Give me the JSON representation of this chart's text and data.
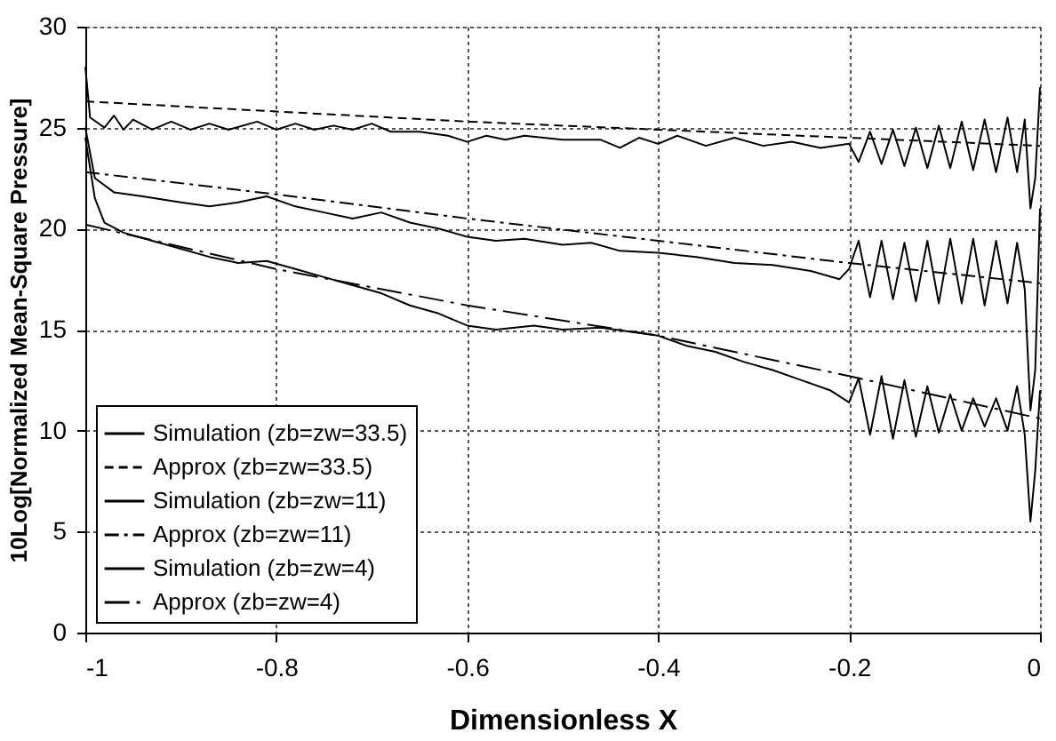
{
  "chart_data": {
    "type": "line",
    "xlabel": "Dimensionless X",
    "ylabel": "10Log[Normalized  Mean-Square  Pressure]",
    "xlim": [
      -1,
      0
    ],
    "ylim": [
      0,
      30
    ],
    "xticks": [
      -1,
      -0.8,
      -0.6,
      -0.4,
      -0.2,
      0
    ],
    "yticks": [
      0,
      5,
      10,
      15,
      20,
      25,
      30
    ],
    "grid": true,
    "legend": "bottom left",
    "marker": "none",
    "series": [
      {
        "name": "Simulation (zb=zw=33.5)",
        "color": "#000000",
        "line_style": "solid",
        "x": [
          -1,
          -0.995,
          -0.98,
          -0.97,
          -0.96,
          -0.95,
          -0.93,
          -0.91,
          -0.89,
          -0.87,
          -0.85,
          -0.82,
          -0.8,
          -0.78,
          -0.76,
          -0.74,
          -0.72,
          -0.7,
          -0.68,
          -0.65,
          -0.62,
          -0.6,
          -0.58,
          -0.56,
          -0.54,
          -0.5,
          -0.46,
          -0.44,
          -0.42,
          -0.4,
          -0.38,
          -0.35,
          -0.32,
          -0.29,
          -0.26,
          -0.23,
          -0.2,
          -0.19,
          -0.178,
          -0.166,
          -0.154,
          -0.142,
          -0.13,
          -0.118,
          -0.106,
          -0.094,
          -0.082,
          -0.07,
          -0.058,
          -0.046,
          -0.034,
          -0.024,
          -0.016,
          -0.01,
          -0.005,
          0
        ],
        "values": [
          28,
          25.5,
          25,
          25.6,
          24.9,
          25.4,
          24.9,
          25.3,
          24.9,
          25.2,
          24.9,
          25.3,
          24.9,
          25.2,
          24.9,
          25.1,
          24.9,
          25.2,
          24.8,
          24.8,
          24.6,
          24.3,
          24.6,
          24.4,
          24.6,
          24.4,
          24.4,
          24.0,
          24.5,
          24.2,
          24.6,
          24.1,
          24.5,
          24.1,
          24.3,
          24.0,
          24.2,
          23.3,
          24.8,
          23.2,
          24.9,
          23.1,
          25.0,
          23.0,
          25.1,
          23.0,
          25.3,
          22.9,
          25.4,
          22.8,
          25.5,
          22.8,
          25.4,
          21.0,
          22.5,
          27
        ]
      },
      {
        "name": "Approx (zb=zw=33.5)",
        "color": "#000000",
        "line_style": "dashed",
        "x": [
          -1,
          -0.8,
          -0.6,
          -0.4,
          -0.2,
          0
        ],
        "values": [
          26.3,
          25.8,
          25.3,
          24.9,
          24.5,
          24.1
        ]
      },
      {
        "name": "Simulation (zb=zw=11)",
        "color": "#000000",
        "line_style": "solid",
        "x": [
          -1,
          -0.99,
          -0.97,
          -0.94,
          -0.9,
          -0.87,
          -0.84,
          -0.81,
          -0.78,
          -0.75,
          -0.72,
          -0.69,
          -0.66,
          -0.63,
          -0.6,
          -0.57,
          -0.54,
          -0.5,
          -0.47,
          -0.44,
          -0.4,
          -0.36,
          -0.32,
          -0.28,
          -0.24,
          -0.21,
          -0.2,
          -0.19,
          -0.178,
          -0.166,
          -0.154,
          -0.142,
          -0.13,
          -0.118,
          -0.106,
          -0.094,
          -0.082,
          -0.07,
          -0.058,
          -0.046,
          -0.034,
          -0.024,
          -0.016,
          -0.01,
          -0.005,
          0
        ],
        "values": [
          25,
          22.5,
          21.8,
          21.6,
          21.3,
          21.1,
          21.3,
          21.6,
          21.1,
          20.8,
          20.5,
          20.8,
          20.3,
          20.0,
          19.6,
          19.4,
          19.5,
          19.2,
          19.3,
          18.9,
          18.8,
          18.6,
          18.3,
          18.2,
          17.9,
          17.5,
          18,
          19.4,
          16.6,
          19.4,
          16.5,
          19.3,
          16.4,
          19.4,
          16.3,
          19.5,
          16.3,
          19.5,
          16.2,
          19.4,
          16.3,
          19.3,
          17.0,
          11.0,
          13.0,
          21
        ]
      },
      {
        "name": "Approx (zb=zw=11)",
        "color": "#000000",
        "line_style": "dashdot",
        "x": [
          -1,
          -0.8,
          -0.6,
          -0.4,
          -0.2,
          0
        ],
        "values": [
          22.8,
          21.7,
          20.5,
          19.4,
          18.3,
          17.3
        ]
      },
      {
        "name": "Simulation (zb=zw=4)",
        "color": "#000000",
        "line_style": "solid",
        "x": [
          -1,
          -0.99,
          -0.98,
          -0.96,
          -0.93,
          -0.9,
          -0.87,
          -0.84,
          -0.81,
          -0.78,
          -0.75,
          -0.72,
          -0.69,
          -0.66,
          -0.63,
          -0.6,
          -0.57,
          -0.53,
          -0.5,
          -0.46,
          -0.43,
          -0.4,
          -0.37,
          -0.34,
          -0.31,
          -0.28,
          -0.25,
          -0.22,
          -0.2,
          -0.19,
          -0.178,
          -0.166,
          -0.154,
          -0.142,
          -0.13,
          -0.118,
          -0.106,
          -0.094,
          -0.082,
          -0.07,
          -0.058,
          -0.046,
          -0.034,
          -0.024,
          -0.016,
          -0.01,
          -0.005,
          0
        ],
        "values": [
          24.5,
          21.5,
          20.3,
          19.8,
          19.4,
          19.0,
          18.6,
          18.3,
          18.4,
          18.0,
          17.6,
          17.2,
          16.8,
          16.2,
          15.8,
          15.2,
          15.0,
          15.2,
          15.0,
          15.1,
          14.9,
          14.7,
          14.2,
          13.9,
          13.4,
          13.0,
          12.5,
          12.0,
          11.4,
          12.6,
          9.8,
          12.7,
          9.6,
          12.5,
          9.7,
          12.2,
          9.9,
          11.8,
          10.0,
          11.6,
          10.2,
          11.6,
          10.0,
          12.2,
          9.8,
          5.5,
          8,
          12
        ]
      },
      {
        "name": "Approx (zb=zw=4)",
        "color": "#000000",
        "line_style": "longdashdot",
        "x": [
          -1,
          -0.8,
          -0.6,
          -0.4,
          -0.2,
          0
        ],
        "values": [
          20.2,
          18.0,
          16.2,
          14.7,
          12.7,
          10.6
        ]
      }
    ]
  }
}
